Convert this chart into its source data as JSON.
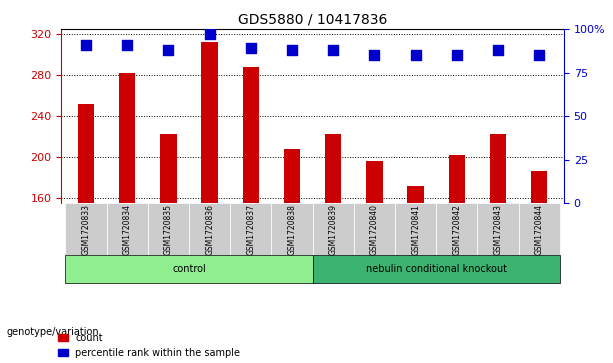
{
  "title": "GDS5880 / 10417836",
  "samples": [
    "GSM1720833",
    "GSM1720834",
    "GSM1720835",
    "GSM1720836",
    "GSM1720837",
    "GSM1720838",
    "GSM1720839",
    "GSM1720840",
    "GSM1720841",
    "GSM1720842",
    "GSM1720843",
    "GSM1720844"
  ],
  "counts": [
    252,
    282,
    222,
    312,
    288,
    208,
    222,
    196,
    172,
    202,
    222,
    186
  ],
  "percentiles": [
    91,
    91,
    88,
    97,
    89,
    88,
    88,
    85,
    85,
    85,
    88,
    85
  ],
  "ylim_left": [
    155,
    325
  ],
  "ylim_right": [
    0,
    100
  ],
  "yticks_left": [
    160,
    200,
    240,
    280,
    320
  ],
  "yticks_right": [
    0,
    25,
    50,
    75,
    100
  ],
  "bar_color": "#cc0000",
  "dot_color": "#0000cc",
  "control_color": "#90ee90",
  "knockout_color": "#3cb371",
  "tick_bg_color": "#cccccc",
  "control_label": "control",
  "knockout_label": "nebulin conditional knockout",
  "genotype_label": "genotype/variation",
  "legend_count": "count",
  "legend_percentile": "percentile rank within the sample",
  "n_control": 6,
  "n_knockout": 6,
  "grid_color": "#000000",
  "bar_width": 0.4,
  "dot_size": 50,
  "fig_width": 6.13,
  "fig_height": 3.63,
  "dpi": 100
}
